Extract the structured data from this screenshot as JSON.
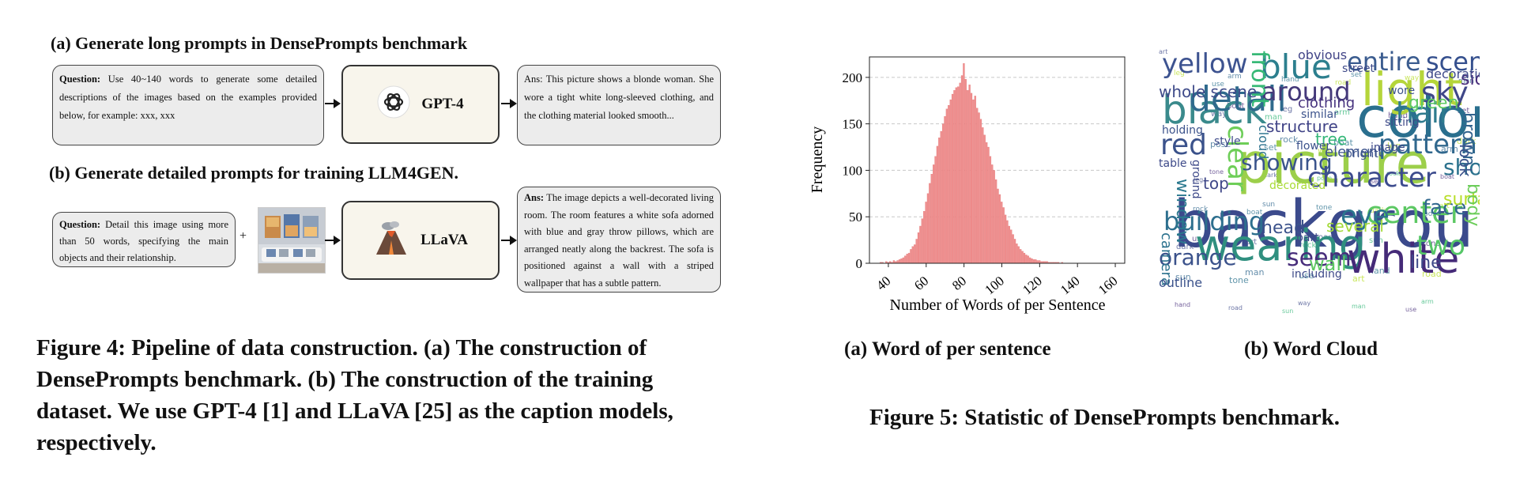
{
  "left_panel": {
    "section_a_title": "(a) Generate long prompts in DensePrompts benchmark",
    "section_b_title": "(b) Generate detailed prompts for training LLM4GEN.",
    "a_question_label": "Question:",
    "a_question_text": "Use 40~140 words to generate some detailed descriptions of the images based on the examples provided below, for example: xxx, xxx",
    "a_model": "GPT-4",
    "a_answer": "Ans: This picture shows a blonde woman. She wore a tight white long-sleeved clothing, and the clothing material looked smooth...",
    "b_question_label": "Question:",
    "b_question_text": "Detail this image using more than 50 words, specifying the main objects and their relationship.",
    "plus": "+",
    "b_model": "LLaVA",
    "b_answer_label": "Ans:",
    "b_answer_text": "The image depicts a well-decorated living room. The room features a white sofa adorned with blue and gray throw pillows, which are arranged neatly along the backrest. The sofa is positioned against a wall with a striped wallpaper that has a subtle pattern.",
    "caption": "Figure 4: Pipeline of data construction. (a) The construction of DensePrompts benchmark. (b) The construction of the training dataset. We use GPT-4 [1] and LLaVA [25] as the caption models, respectively."
  },
  "right_panel": {
    "sub_a_caption": "(a) Word of per sentence",
    "sub_b_caption": "(b) Word Cloud",
    "caption": "Figure 5: Statistic of DensePrompts benchmark.",
    "word_cloud": [
      {
        "w": "background",
        "c": "#3b4a8c"
      },
      {
        "w": "picture",
        "c": "#9ccf4a"
      },
      {
        "w": "color",
        "c": "#2a6f8e"
      },
      {
        "w": "black",
        "c": "#3a8a8c"
      },
      {
        "w": "wearing",
        "c": "#2f8f7f"
      },
      {
        "w": "white",
        "c": "#452a78"
      },
      {
        "w": "light",
        "c": "#b5d53a"
      },
      {
        "w": "blue",
        "c": "#2c7f8e"
      },
      {
        "w": "detail",
        "c": "#2f6a8d"
      },
      {
        "w": "yellow",
        "c": "#3d5390"
      },
      {
        "w": "entire",
        "c": "#3b5c8f"
      },
      {
        "w": "scene",
        "c": "#35508e"
      },
      {
        "w": "character",
        "c": "#3d4c8e"
      },
      {
        "w": "building",
        "c": "#2d6f8e"
      },
      {
        "w": "pattern",
        "c": "#31688e"
      },
      {
        "w": "hair",
        "c": "#2e7b8e"
      },
      {
        "w": "red",
        "c": "#3b528b"
      },
      {
        "w": "center",
        "c": "#5cc863"
      },
      {
        "w": "eye",
        "c": "#2b758e"
      },
      {
        "w": "sky",
        "c": "#3f4788"
      },
      {
        "w": "around",
        "c": "#44397a"
      },
      {
        "w": "showing",
        "c": "#3a548c"
      },
      {
        "w": "two",
        "c": "#55c667"
      },
      {
        "w": "orange",
        "c": "#3b528b"
      },
      {
        "w": "seem",
        "c": "#472d7b"
      },
      {
        "w": "show",
        "c": "#2c728e"
      },
      {
        "w": "front",
        "c": "#38b977"
      },
      {
        "w": "clear",
        "c": "#6ece58"
      },
      {
        "w": "structure",
        "c": "#414487"
      },
      {
        "w": "whole scene",
        "c": "#3e4a89"
      },
      {
        "w": "window",
        "c": "#2a788e"
      },
      {
        "w": "head",
        "c": "#3b528b"
      },
      {
        "w": "wall",
        "c": "#5ec962"
      },
      {
        "w": "face",
        "c": "#31688e"
      },
      {
        "w": "surface",
        "c": "#b8de29"
      },
      {
        "w": "line",
        "c": "#3e4989"
      },
      {
        "w": "camera",
        "c": "#2c728e"
      },
      {
        "w": "obvious",
        "c": "#414487"
      },
      {
        "w": "several",
        "c": "#a2da37"
      },
      {
        "w": "tree",
        "c": "#35b779"
      },
      {
        "w": "element",
        "c": "#3b528b"
      },
      {
        "w": "body",
        "c": "#6ccd5a"
      },
      {
        "w": "brown",
        "c": "#32648e"
      },
      {
        "w": "look",
        "c": "#3b528b"
      },
      {
        "w": "side",
        "c": "#472c7a"
      },
      {
        "w": "decoration",
        "c": "#3e4a89"
      },
      {
        "w": "green",
        "c": "#5ec962"
      },
      {
        "w": "outline",
        "c": "#3b528b"
      },
      {
        "w": "cloud",
        "c": "#2c728e"
      },
      {
        "w": "top",
        "c": "#3f4788"
      },
      {
        "w": "including",
        "c": "#3e4a89"
      },
      {
        "w": "clothing",
        "c": "#46327e"
      },
      {
        "w": "bright",
        "c": "#3b528b"
      },
      {
        "w": "image",
        "c": "#3e4a89"
      },
      {
        "w": "style",
        "c": "#3e4a89"
      },
      {
        "w": "flower",
        "c": "#3b528b"
      },
      {
        "w": "sitting",
        "c": "#3e4a89"
      },
      {
        "w": "similar",
        "c": "#3b528b"
      },
      {
        "w": "table",
        "c": "#3e4a89"
      },
      {
        "w": "holding",
        "c": "#3b528b"
      },
      {
        "w": "part",
        "c": "#3e4a89"
      },
      {
        "w": "street",
        "c": "#3e4a89"
      },
      {
        "w": "wore",
        "c": "#3b528b"
      },
      {
        "w": "ground",
        "c": "#3e4a89"
      },
      {
        "w": "decorated",
        "c": "#a8db34"
      }
    ]
  },
  "chart_data": {
    "type": "bar",
    "xlabel": "Number of Words of per Sentence",
    "ylabel": "Frequency",
    "xlim": [
      30,
      165
    ],
    "ylim": [
      0,
      222
    ],
    "xticks": [
      "40",
      "60",
      "80",
      "100",
      "120",
      "140",
      "160"
    ],
    "yticks": [
      "0",
      "50",
      "100",
      "150",
      "200"
    ],
    "grid": "horizontal dashed",
    "bar_color": "#f08f8f",
    "x": [
      33,
      34,
      35,
      36,
      37,
      38,
      39,
      40,
      41,
      42,
      43,
      44,
      45,
      46,
      47,
      48,
      49,
      50,
      51,
      52,
      53,
      54,
      55,
      56,
      57,
      58,
      59,
      60,
      61,
      62,
      63,
      64,
      65,
      66,
      67,
      68,
      69,
      70,
      71,
      72,
      73,
      74,
      75,
      76,
      77,
      78,
      79,
      80,
      81,
      82,
      83,
      84,
      85,
      86,
      87,
      88,
      89,
      90,
      91,
      92,
      93,
      94,
      95,
      96,
      97,
      98,
      99,
      100,
      101,
      102,
      103,
      104,
      105,
      106,
      107,
      108,
      109,
      110,
      111,
      112,
      113,
      114,
      115,
      116,
      117,
      118,
      119,
      120,
      121,
      122,
      123,
      124,
      125,
      126,
      127,
      128,
      129,
      130,
      131,
      132,
      133,
      134,
      135,
      136,
      137,
      138,
      139,
      140,
      141,
      142,
      143,
      144,
      145,
      146,
      147,
      148,
      149,
      150,
      151,
      152,
      153,
      154,
      155,
      156,
      157,
      158,
      159,
      160
    ],
    "values": [
      0,
      0,
      0,
      1,
      1,
      0,
      2,
      1,
      2,
      1,
      3,
      2,
      3,
      4,
      5,
      6,
      8,
      10,
      11,
      15,
      18,
      20,
      26,
      33,
      40,
      48,
      56,
      66,
      75,
      86,
      96,
      106,
      115,
      126,
      135,
      142,
      150,
      158,
      166,
      170,
      176,
      182,
      186,
      189,
      190,
      194,
      202,
      215,
      198,
      186,
      192,
      183,
      176,
      180,
      167,
      162,
      155,
      146,
      138,
      130,
      125,
      115,
      106,
      100,
      90,
      80,
      74,
      66,
      60,
      52,
      46,
      40,
      36,
      31,
      26,
      21,
      18,
      15,
      13,
      11,
      9,
      8,
      6,
      5,
      4,
      4,
      3,
      3,
      2,
      2,
      2,
      2,
      1,
      1,
      1,
      1,
      1,
      1,
      0,
      1,
      0,
      0,
      0,
      0,
      0,
      0,
      0,
      0,
      0,
      0,
      0,
      0,
      0,
      0,
      0,
      0,
      0,
      0,
      0,
      0,
      0,
      0,
      0,
      0,
      0,
      0,
      0,
      0
    ]
  }
}
